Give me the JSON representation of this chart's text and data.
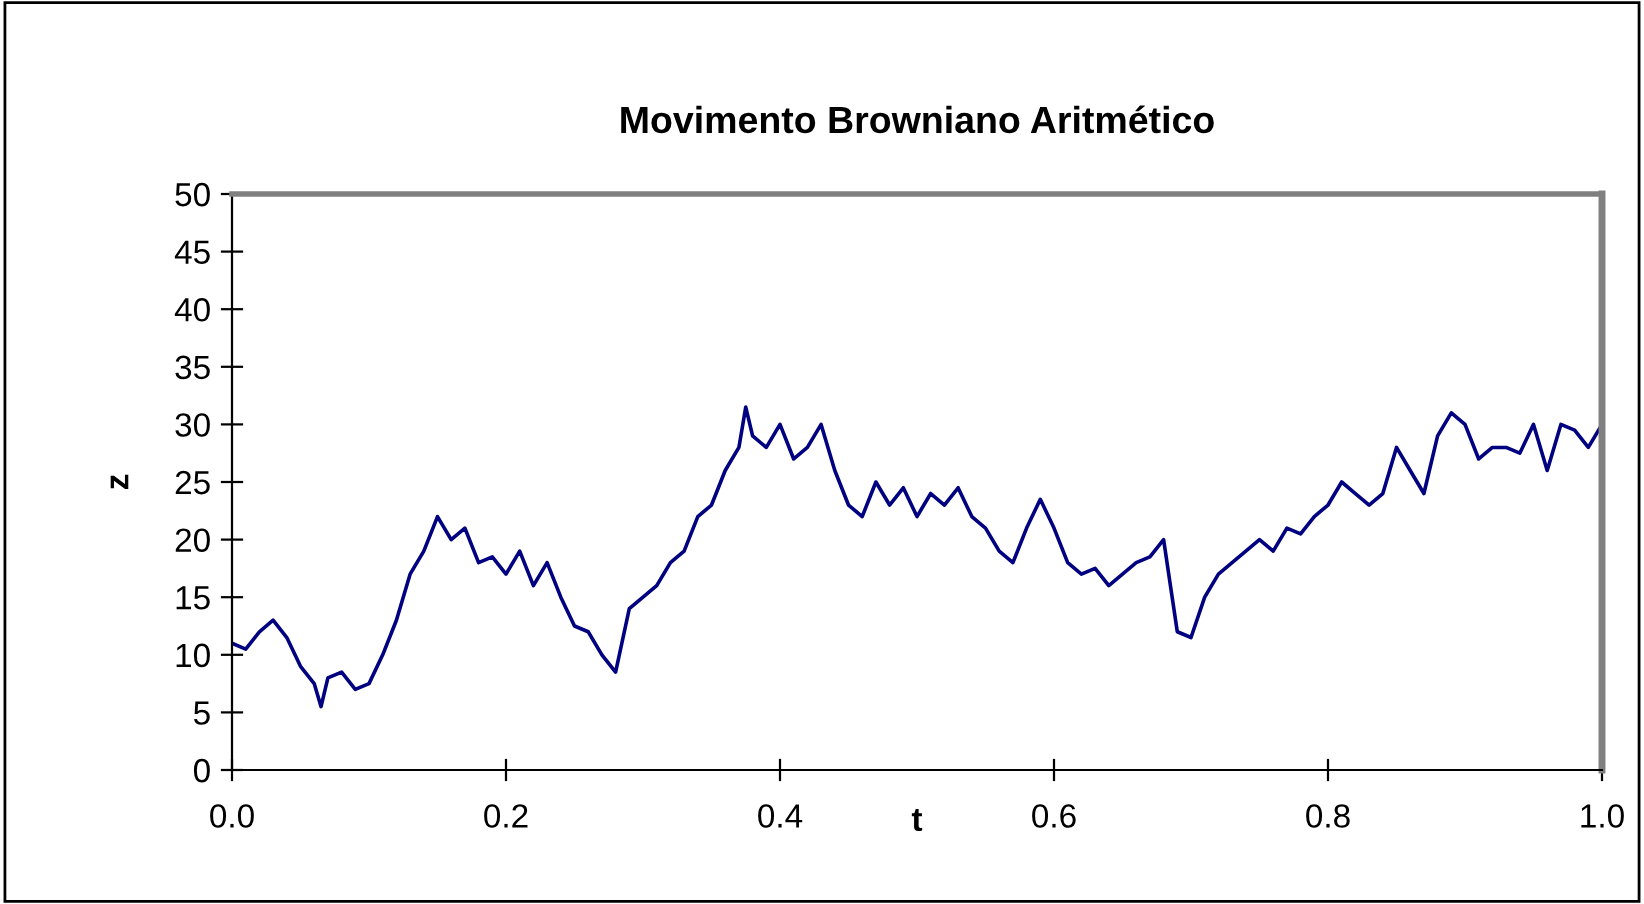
{
  "chart_data": {
    "type": "line",
    "title": "Movimento Browniano Aritmético",
    "xlabel": "t",
    "ylabel": "z",
    "x": [
      0,
      0.01,
      0.02,
      0.03,
      0.04,
      0.05,
      0.06,
      0.065,
      0.07,
      0.08,
      0.09,
      0.1,
      0.11,
      0.12,
      0.13,
      0.14,
      0.15,
      0.16,
      0.17,
      0.18,
      0.19,
      0.2,
      0.21,
      0.22,
      0.23,
      0.24,
      0.25,
      0.26,
      0.27,
      0.28,
      0.29,
      0.3,
      0.31,
      0.32,
      0.33,
      0.34,
      0.35,
      0.36,
      0.37,
      0.375,
      0.38,
      0.39,
      0.4,
      0.41,
      0.42,
      0.43,
      0.44,
      0.45,
      0.46,
      0.47,
      0.48,
      0.49,
      0.5,
      0.51,
      0.52,
      0.53,
      0.54,
      0.55,
      0.56,
      0.57,
      0.58,
      0.59,
      0.6,
      0.61,
      0.62,
      0.63,
      0.64,
      0.65,
      0.66,
      0.67,
      0.68,
      0.685,
      0.69,
      0.7,
      0.71,
      0.72,
      0.73,
      0.74,
      0.75,
      0.76,
      0.77,
      0.78,
      0.79,
      0.8,
      0.81,
      0.82,
      0.83,
      0.84,
      0.85,
      0.86,
      0.87,
      0.88,
      0.89,
      0.9,
      0.91,
      0.92,
      0.93,
      0.94,
      0.95,
      0.96,
      0.97,
      0.98,
      0.99,
      1.0
    ],
    "series": [
      {
        "color": "#000080",
        "values": [
          11,
          10.5,
          12,
          13,
          11.5,
          9,
          7.5,
          5.5,
          8,
          8.5,
          7,
          7.5,
          10,
          13,
          17,
          19,
          22,
          20,
          21,
          18,
          18.5,
          17,
          19,
          16,
          18,
          15,
          12.5,
          12,
          10,
          8.5,
          14,
          15,
          16,
          18,
          19,
          22,
          23,
          26,
          28,
          31.5,
          29,
          28,
          30,
          27,
          28,
          30,
          26,
          23,
          22,
          25,
          23,
          24.5,
          22,
          24,
          23,
          24.5,
          22,
          21,
          19,
          18,
          21,
          23.5,
          21,
          18,
          17,
          17.5,
          16,
          17,
          18,
          18.5,
          20,
          16,
          12,
          11.5,
          15,
          17,
          18,
          19,
          20,
          19,
          21,
          20.5,
          22,
          23,
          25,
          24,
          23,
          24,
          28,
          26,
          24,
          29,
          31,
          30,
          27,
          28,
          28,
          27.5,
          30,
          26,
          30,
          29.5,
          28,
          30
        ]
      }
    ],
    "xlim": [
      0,
      1.0
    ],
    "ylim": [
      0,
      50
    ],
    "xticks": [
      {
        "value": 0,
        "label": "0.0"
      },
      0.2,
      0.4,
      0.6,
      0.8,
      {
        "value": 1.0,
        "label": "1.0"
      }
    ],
    "yticks": [
      0,
      5,
      10,
      15,
      20,
      25,
      30,
      35,
      40,
      45,
      50
    ],
    "grid": false,
    "legend": false,
    "marker": "none",
    "line_style": "solid"
  }
}
